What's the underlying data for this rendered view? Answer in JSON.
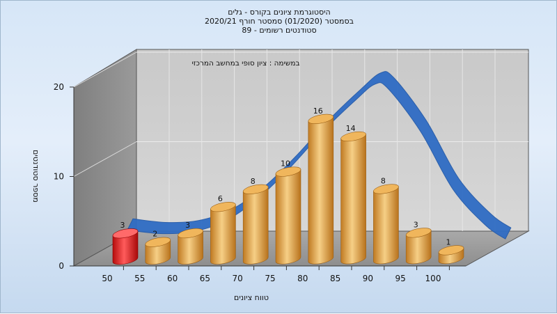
{
  "chart": {
    "title_lines": [
      "היסטוגרמת ציונים בקורס - גלים",
      "בסמסטר  (01/2020)  סמסטר חורף  2020/21",
      "סטודנטים רשומים - 89"
    ],
    "subtitle": "במשימה : ציון סופי במחשב המרכזי",
    "xlabel": "טווח ציונים",
    "ylabel": "מספר סטודנטים"
  },
  "chart_data": {
    "type": "bar",
    "title": "היסטוגרמת ציונים בקורס - גלים",
    "subtitle": "במשימה : ציון סופי במחשב המרכזי",
    "xlabel": "טווח ציונים",
    "ylabel": "מספר סטודנטים",
    "x_ticks": [
      "50",
      "55",
      "60",
      "65",
      "70",
      "75",
      "80",
      "85",
      "90",
      "95",
      "100"
    ],
    "y_ticks": [
      0,
      10,
      20
    ],
    "ylim": [
      0,
      20
    ],
    "grid": true,
    "categories": [
      "50-55",
      "55-60",
      "60-65",
      "65-70",
      "70-75",
      "75-80",
      "80-85",
      "85-90",
      "90-95",
      "95-100",
      "100"
    ],
    "values": [
      3,
      2,
      3,
      6,
      8,
      10,
      16,
      14,
      8,
      3,
      1
    ],
    "bar_colors": [
      "#e02020",
      "#e3a14a",
      "#e3a14a",
      "#e3a14a",
      "#e3a14a",
      "#e3a14a",
      "#e3a14a",
      "#e3a14a",
      "#e3a14a",
      "#e3a14a",
      "#e3a14a"
    ],
    "curve": {
      "type": "normal-fit",
      "color": "#2f6cc4",
      "x": [
        47,
        52,
        57,
        62,
        67,
        72,
        77,
        82,
        85,
        87,
        92,
        97,
        102,
        105
      ],
      "y": [
        2,
        1.6,
        1.8,
        3,
        5.5,
        9,
        13,
        16.5,
        18.3,
        17.8,
        13,
        6.5,
        2.5,
        1
      ]
    }
  }
}
